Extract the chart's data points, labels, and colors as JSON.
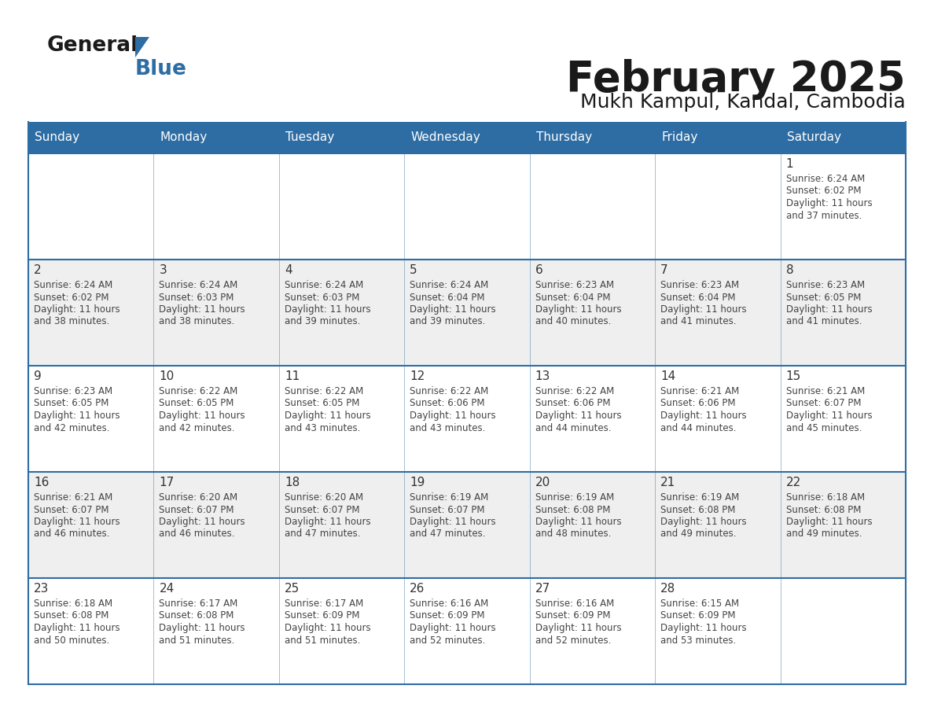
{
  "title": "February 2025",
  "subtitle": "Mukh Kampul, Kandal, Cambodia",
  "header_bg": "#2E6DA4",
  "header_text": "#FFFFFF",
  "day_names": [
    "Sunday",
    "Monday",
    "Tuesday",
    "Wednesday",
    "Thursday",
    "Friday",
    "Saturday"
  ],
  "cell_bg_white": "#FFFFFF",
  "cell_bg_gray": "#EFEFEF",
  "border_color": "#2E6DA4",
  "text_color": "#444444",
  "num_color": "#333333",
  "logo_general_color": "#1a1a1a",
  "logo_blue_color": "#2E6DA4",
  "logo_triangle_color": "#2E6DA4",
  "title_color": "#1a1a1a",
  "subtitle_color": "#1a1a1a",
  "calendar": [
    [
      null,
      null,
      null,
      null,
      null,
      null,
      {
        "day": 1,
        "sunrise": "6:24 AM",
        "sunset": "6:02 PM",
        "daylight": "11 hours and 37 minutes"
      }
    ],
    [
      {
        "day": 2,
        "sunrise": "6:24 AM",
        "sunset": "6:02 PM",
        "daylight": "11 hours and 38 minutes"
      },
      {
        "day": 3,
        "sunrise": "6:24 AM",
        "sunset": "6:03 PM",
        "daylight": "11 hours and 38 minutes"
      },
      {
        "day": 4,
        "sunrise": "6:24 AM",
        "sunset": "6:03 PM",
        "daylight": "11 hours and 39 minutes"
      },
      {
        "day": 5,
        "sunrise": "6:24 AM",
        "sunset": "6:04 PM",
        "daylight": "11 hours and 39 minutes"
      },
      {
        "day": 6,
        "sunrise": "6:23 AM",
        "sunset": "6:04 PM",
        "daylight": "11 hours and 40 minutes"
      },
      {
        "day": 7,
        "sunrise": "6:23 AM",
        "sunset": "6:04 PM",
        "daylight": "11 hours and 41 minutes"
      },
      {
        "day": 8,
        "sunrise": "6:23 AM",
        "sunset": "6:05 PM",
        "daylight": "11 hours and 41 minutes"
      }
    ],
    [
      {
        "day": 9,
        "sunrise": "6:23 AM",
        "sunset": "6:05 PM",
        "daylight": "11 hours and 42 minutes"
      },
      {
        "day": 10,
        "sunrise": "6:22 AM",
        "sunset": "6:05 PM",
        "daylight": "11 hours and 42 minutes"
      },
      {
        "day": 11,
        "sunrise": "6:22 AM",
        "sunset": "6:05 PM",
        "daylight": "11 hours and 43 minutes"
      },
      {
        "day": 12,
        "sunrise": "6:22 AM",
        "sunset": "6:06 PM",
        "daylight": "11 hours and 43 minutes"
      },
      {
        "day": 13,
        "sunrise": "6:22 AM",
        "sunset": "6:06 PM",
        "daylight": "11 hours and 44 minutes"
      },
      {
        "day": 14,
        "sunrise": "6:21 AM",
        "sunset": "6:06 PM",
        "daylight": "11 hours and 44 minutes"
      },
      {
        "day": 15,
        "sunrise": "6:21 AM",
        "sunset": "6:07 PM",
        "daylight": "11 hours and 45 minutes"
      }
    ],
    [
      {
        "day": 16,
        "sunrise": "6:21 AM",
        "sunset": "6:07 PM",
        "daylight": "11 hours and 46 minutes"
      },
      {
        "day": 17,
        "sunrise": "6:20 AM",
        "sunset": "6:07 PM",
        "daylight": "11 hours and 46 minutes"
      },
      {
        "day": 18,
        "sunrise": "6:20 AM",
        "sunset": "6:07 PM",
        "daylight": "11 hours and 47 minutes"
      },
      {
        "day": 19,
        "sunrise": "6:19 AM",
        "sunset": "6:07 PM",
        "daylight": "11 hours and 47 minutes"
      },
      {
        "day": 20,
        "sunrise": "6:19 AM",
        "sunset": "6:08 PM",
        "daylight": "11 hours and 48 minutes"
      },
      {
        "day": 21,
        "sunrise": "6:19 AM",
        "sunset": "6:08 PM",
        "daylight": "11 hours and 49 minutes"
      },
      {
        "day": 22,
        "sunrise": "6:18 AM",
        "sunset": "6:08 PM",
        "daylight": "11 hours and 49 minutes"
      }
    ],
    [
      {
        "day": 23,
        "sunrise": "6:18 AM",
        "sunset": "6:08 PM",
        "daylight": "11 hours and 50 minutes"
      },
      {
        "day": 24,
        "sunrise": "6:17 AM",
        "sunset": "6:08 PM",
        "daylight": "11 hours and 51 minutes"
      },
      {
        "day": 25,
        "sunrise": "6:17 AM",
        "sunset": "6:09 PM",
        "daylight": "11 hours and 51 minutes"
      },
      {
        "day": 26,
        "sunrise": "6:16 AM",
        "sunset": "6:09 PM",
        "daylight": "11 hours and 52 minutes"
      },
      {
        "day": 27,
        "sunrise": "6:16 AM",
        "sunset": "6:09 PM",
        "daylight": "11 hours and 52 minutes"
      },
      {
        "day": 28,
        "sunrise": "6:15 AM",
        "sunset": "6:09 PM",
        "daylight": "11 hours and 53 minutes"
      },
      null
    ]
  ],
  "row_bg": [
    "#FFFFFF",
    "#EFEFEF",
    "#FFFFFF",
    "#EFEFEF",
    "#FFFFFF"
  ]
}
